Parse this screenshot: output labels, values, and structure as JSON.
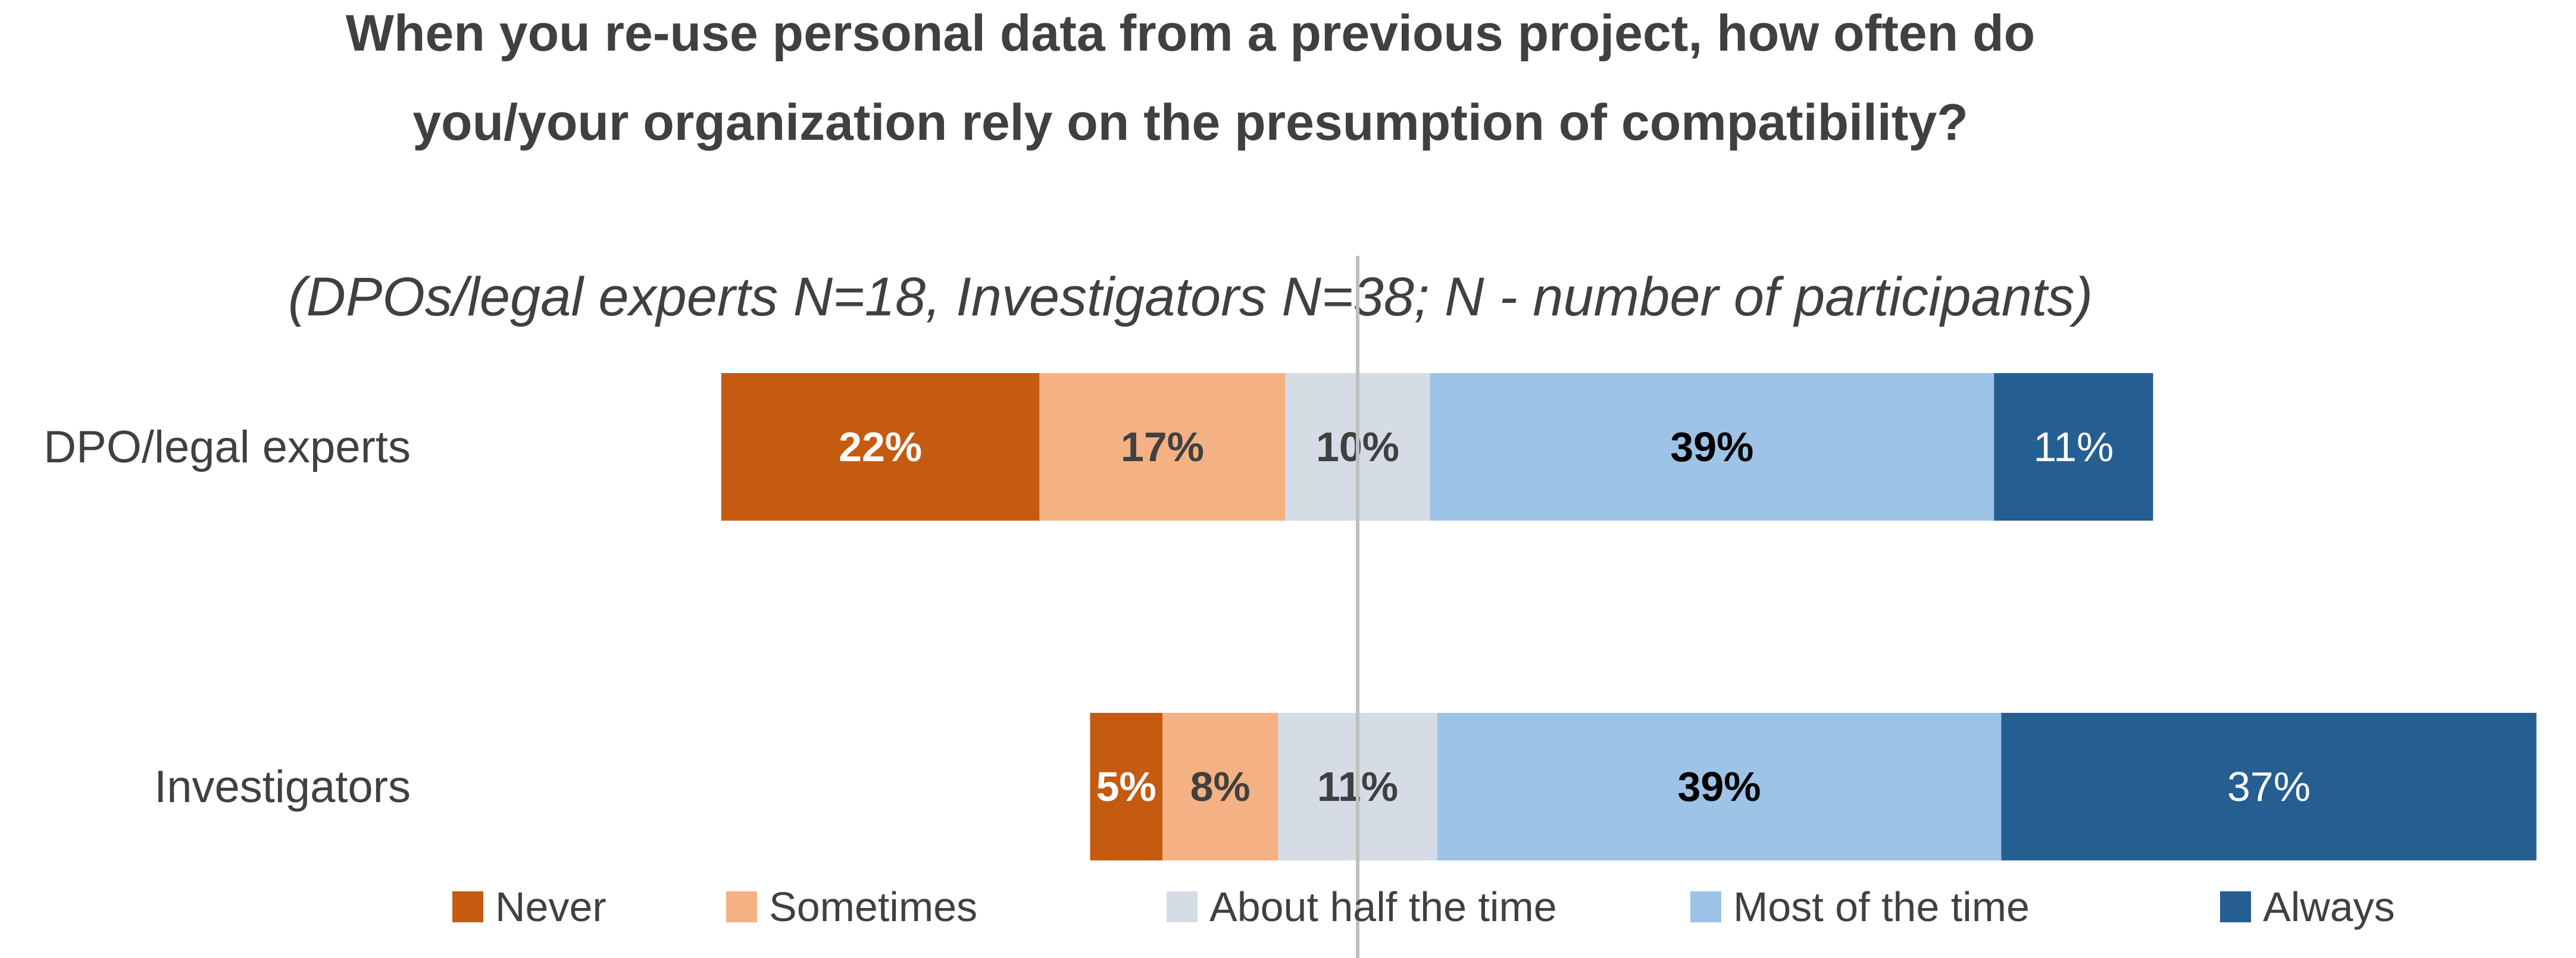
{
  "chart_data": {
    "type": "bar",
    "orientation": "horizontal",
    "stacked": true,
    "diverging": true,
    "title": "When you re-use personal data from a previous project, how often do you/your organization rely on the presumption of compatibility?",
    "title_lines": [
      "When you re-use personal data from a previous project, how often do",
      "you/your organization rely on the presumption of compatibility?"
    ],
    "subtitle": "(DPOs/legal experts N=18, Investigators N=38; N - number of participants)",
    "categories": [
      "DPO/legal experts",
      "Investigators"
    ],
    "series": [
      {
        "name": "Never",
        "values": [
          22,
          5
        ],
        "labels": [
          "22%",
          "5%"
        ],
        "color": "#c55a11",
        "label_color": "#ffffff",
        "label_bold": true
      },
      {
        "name": "Sometimes",
        "values": [
          17,
          8
        ],
        "labels": [
          "17%",
          "8%"
        ],
        "color": "#f4b183",
        "label_color": "#404040",
        "label_bold": true
      },
      {
        "name": "About half the time",
        "values": [
          10,
          11
        ],
        "labels": [
          "10%",
          "11%"
        ],
        "color": "#d6dce5",
        "label_color": "#404040",
        "label_bold": true
      },
      {
        "name": "Most of the time",
        "values": [
          39,
          39
        ],
        "labels": [
          "39%",
          "39%"
        ],
        "color": "#9dc3e6",
        "label_color": "#000000",
        "label_bold": true
      },
      {
        "name": "Always",
        "values": [
          11,
          37
        ],
        "labels": [
          "11%",
          "37%"
        ],
        "color": "#255e91",
        "label_color": "#ffffff",
        "label_bold": false
      }
    ],
    "center_line_color": "#bfbfbf",
    "legend_position": "bottom",
    "grid": false
  }
}
